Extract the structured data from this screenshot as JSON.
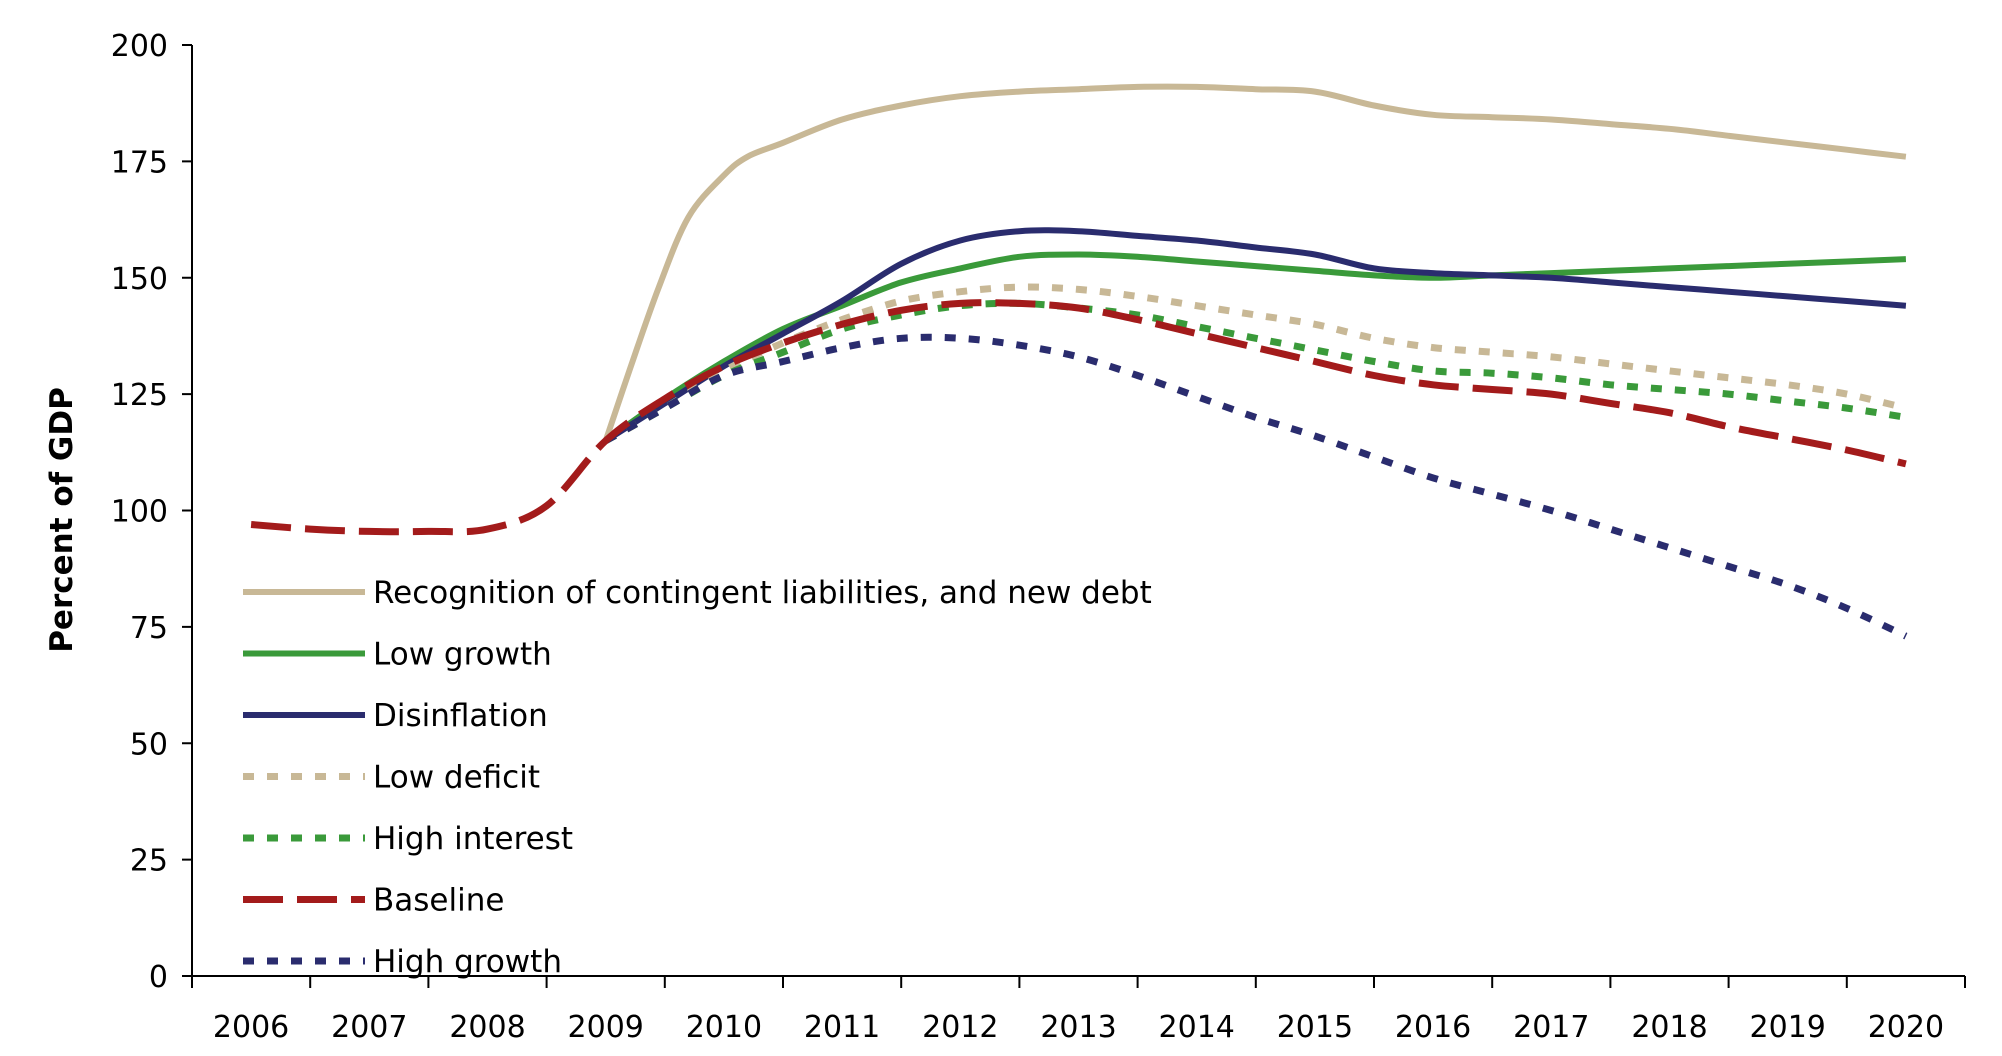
{
  "chart_data": {
    "type": "line",
    "title": "",
    "xlabel": "",
    "ylabel": "Percent of GDP",
    "ylim": [
      0,
      200
    ],
    "yticks": [
      "0",
      "25",
      "50",
      "75",
      "100",
      "125",
      "150",
      "175",
      "200"
    ],
    "categories": [
      "2006",
      "2007",
      "2008",
      "2009",
      "2010",
      "2011",
      "2012",
      "2013",
      "2014",
      "2015",
      "2016",
      "2017",
      "2018",
      "2019",
      "2020"
    ],
    "grid": false,
    "legend_position": "bottom-left-inside",
    "series": [
      {
        "name": "Recognition of contingent liabilities, and new debt",
        "color": "#c8b896",
        "style": "solid",
        "x": [
          2009,
          2009.2,
          2009.45,
          2009.7,
          2010,
          2010.2,
          2010.5,
          2011,
          2011.5,
          2012,
          2012.5,
          2013,
          2013.5,
          2014,
          2014.5,
          2015,
          2015.5,
          2016,
          2016.5,
          2017,
          2017.5,
          2018,
          2018.5,
          2019,
          2019.5,
          2020
        ],
        "y": [
          115,
          130,
          148,
          163,
          172,
          176,
          179,
          184,
          187,
          189,
          190,
          190.5,
          191,
          191,
          190.5,
          190,
          187,
          185,
          184.5,
          184,
          183,
          182,
          180.5,
          179,
          177.5,
          176
        ]
      },
      {
        "name": "Low growth",
        "color": "#3a9a3a",
        "style": "solid",
        "x": [
          2009,
          2009.5,
          2010,
          2010.5,
          2011,
          2011.5,
          2012,
          2012.5,
          2013,
          2013.5,
          2014,
          2014.5,
          2015,
          2015.5,
          2016,
          2016.5,
          2017,
          2017.5,
          2018,
          2018.5,
          2019,
          2019.5,
          2020
        ],
        "y": [
          115,
          124,
          132,
          139,
          144,
          149,
          152,
          154.5,
          155,
          154.5,
          153.5,
          152.5,
          151.5,
          150.5,
          150,
          150.5,
          151,
          151.5,
          152,
          152.5,
          153,
          153.5,
          154
        ]
      },
      {
        "name": "Disinflation",
        "color": "#2a2c6e",
        "style": "solid",
        "x": [
          2009,
          2009.5,
          2010,
          2010.5,
          2011,
          2011.5,
          2012,
          2012.5,
          2013,
          2013.5,
          2014,
          2014.5,
          2015,
          2015.5,
          2016,
          2016.5,
          2017,
          2017.5,
          2018,
          2018.5,
          2019,
          2019.5,
          2020
        ],
        "y": [
          115,
          123,
          131,
          138,
          145,
          153,
          158,
          160,
          160,
          159,
          158,
          156.5,
          155,
          152,
          151,
          150.5,
          150,
          149,
          148,
          147,
          146,
          145,
          144
        ]
      },
      {
        "name": "Low deficit",
        "color": "#c8b896",
        "style": "short-dash",
        "x": [
          2009,
          2009.5,
          2010,
          2010.5,
          2011,
          2011.5,
          2012,
          2012.5,
          2013,
          2013.5,
          2014,
          2014.5,
          2015,
          2015.5,
          2016,
          2016.5,
          2017,
          2017.5,
          2018,
          2018.5,
          2019,
          2019.5,
          2020
        ],
        "y": [
          115,
          122,
          130,
          136,
          141,
          145,
          147,
          148,
          147.5,
          146,
          144,
          142,
          140,
          137,
          135,
          134,
          133,
          131.5,
          130,
          128.5,
          127,
          125,
          122
        ]
      },
      {
        "name": "High interest",
        "color": "#3a9a3a",
        "style": "short-dash",
        "x": [
          2009,
          2009.5,
          2010,
          2010.5,
          2011,
          2011.5,
          2012,
          2012.5,
          2013,
          2013.5,
          2014,
          2014.5,
          2015,
          2015.5,
          2016,
          2016.5,
          2017,
          2017.5,
          2018,
          2018.5,
          2019,
          2019.5,
          2020
        ],
        "y": [
          115,
          122,
          129,
          134,
          139,
          142,
          144,
          144.5,
          143.5,
          142,
          139.5,
          137,
          134.5,
          132,
          130,
          129.5,
          128.5,
          127,
          126,
          125,
          123.5,
          122,
          120
        ]
      },
      {
        "name": "Baseline",
        "color": "#a31b1b",
        "style": "long-dash",
        "x": [
          2006,
          2006.5,
          2007,
          2007.5,
          2008,
          2008.5,
          2009,
          2009.5,
          2010,
          2010.5,
          2011,
          2011.5,
          2012,
          2012.5,
          2013,
          2013.5,
          2014,
          2014.5,
          2015,
          2015.5,
          2016,
          2016.5,
          2017,
          2017.5,
          2018,
          2018.5,
          2019,
          2019.5,
          2020
        ],
        "y": [
          97,
          96,
          95.5,
          95.5,
          96,
          101,
          115,
          124,
          131,
          136,
          140,
          143,
          144.5,
          144.5,
          143.5,
          141,
          138,
          135,
          132,
          129,
          127,
          126,
          125,
          123,
          121,
          118,
          115.5,
          113,
          110
        ]
      },
      {
        "name": "High growth",
        "color": "#2a2c6e",
        "style": "short-dash",
        "x": [
          2009,
          2009.5,
          2010,
          2010.5,
          2011,
          2011.5,
          2012,
          2012.5,
          2013,
          2013.5,
          2014,
          2014.5,
          2015,
          2015.5,
          2016,
          2016.5,
          2017,
          2017.5,
          2018,
          2018.5,
          2019,
          2019.5,
          2020
        ],
        "y": [
          115,
          122,
          129,
          132,
          135,
          137,
          137,
          135.5,
          133,
          129,
          124.5,
          120,
          116,
          111.5,
          107,
          103.5,
          100,
          96,
          92,
          88,
          84,
          79,
          73
        ]
      }
    ]
  }
}
